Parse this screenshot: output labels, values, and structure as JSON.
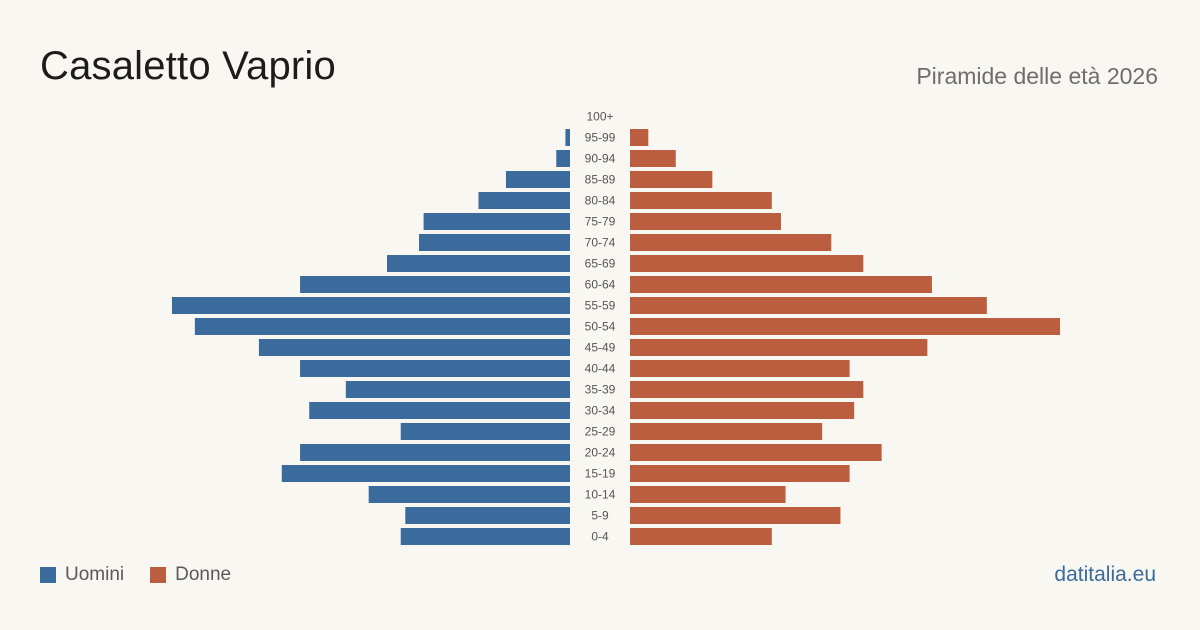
{
  "header": {
    "title": "Casaletto Vaprio",
    "subtitle": "Piramide delle età 2026"
  },
  "legend": {
    "men_label": "Uomini",
    "women_label": "Donne"
  },
  "footer": {
    "brand": "datitalia.eu"
  },
  "colors": {
    "men": "#3b6a9c",
    "women": "#bb5e3f",
    "background": "#f9f7f2",
    "tick_text": "#555555"
  },
  "chart_data": {
    "type": "bar",
    "orientation": "horizontal-population-pyramid",
    "title": "Casaletto Vaprio",
    "subtitle": "Piramide delle età 2026",
    "categories": [
      "100+",
      "95-99",
      "90-94",
      "85-89",
      "80-84",
      "75-79",
      "70-74",
      "65-69",
      "60-64",
      "55-59",
      "50-54",
      "45-49",
      "40-44",
      "35-39",
      "30-34",
      "25-29",
      "20-24",
      "15-19",
      "10-14",
      "5-9",
      "0-4"
    ],
    "series": [
      {
        "name": "Uomini",
        "side": "left",
        "values": [
          0,
          1,
          3,
          14,
          20,
          32,
          33,
          40,
          59,
          87,
          82,
          68,
          59,
          49,
          57,
          37,
          59,
          63,
          44,
          36,
          37
        ]
      },
      {
        "name": "Donne",
        "side": "right",
        "values": [
          0,
          4,
          10,
          18,
          31,
          33,
          44,
          51,
          66,
          78,
          94,
          65,
          48,
          51,
          49,
          42,
          55,
          48,
          34,
          46,
          31
        ]
      }
    ],
    "legend_position": "bottom-left",
    "grid": false
  }
}
